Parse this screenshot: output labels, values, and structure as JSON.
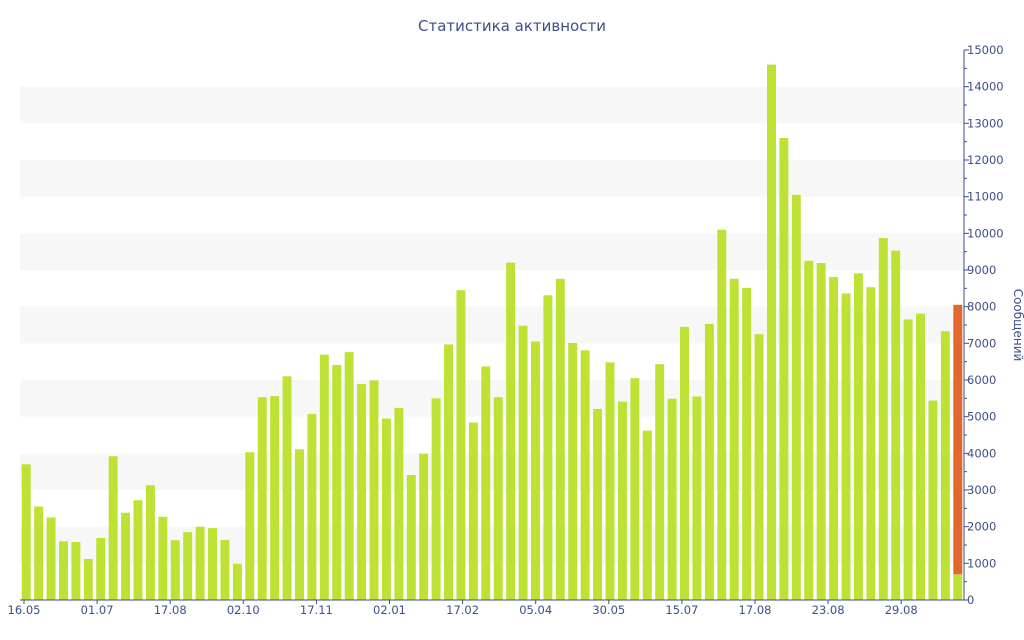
{
  "chart_data": {
    "type": "bar",
    "title": "Статистика активности",
    "ylabel": "Сообщений",
    "xlabel": "",
    "ylim": [
      0,
      15000
    ],
    "y_ticks": [
      "0",
      "1000",
      "2000",
      "3000",
      "4000",
      "5000",
      "6000",
      "7000",
      "8000",
      "9000",
      "10000",
      "11000",
      "12000",
      "13000",
      "14000",
      "15000"
    ],
    "x_tick_labels": [
      "16.05",
      "01.07",
      "17.08",
      "02.10",
      "17.11",
      "02.01",
      "17.02",
      "05.04",
      "30.05",
      "15.07",
      "17.08",
      "23.08",
      "29.08"
    ],
    "grid": "alternating horizontal bands",
    "y_axis_side": "right",
    "colors": {
      "bar": "#bde234",
      "highlight": "#e2672d",
      "axis": "#3d4f86",
      "band": "#f7f7f7"
    },
    "series": [
      {
        "values": [
          3700,
          2550,
          2250,
          1600,
          1580,
          1120,
          1690,
          3920,
          2380,
          2720,
          3130,
          2270,
          1630,
          1850,
          2000,
          1960,
          1640,
          990,
          4030,
          5530,
          5560,
          6100,
          4110,
          5070,
          6690,
          6410,
          6760,
          5890,
          5990,
          4950,
          5240,
          3410,
          3990,
          5500,
          6970,
          8450,
          4840,
          6370,
          5530,
          9200,
          7480,
          7050,
          8310,
          8760,
          7010,
          6810,
          5210,
          6480,
          5410,
          6050,
          4620,
          6430,
          5490,
          7450,
          5550,
          7530,
          10100,
          8760,
          8510,
          7250,
          14600,
          12600,
          11050,
          9250,
          9190,
          8810,
          8360,
          8910,
          8530,
          9870,
          9530,
          7650,
          7810,
          5440,
          7330,
          8050
        ]
      }
    ],
    "highlight": {
      "index": 75,
      "values": [
        700,
        8050
      ]
    }
  }
}
